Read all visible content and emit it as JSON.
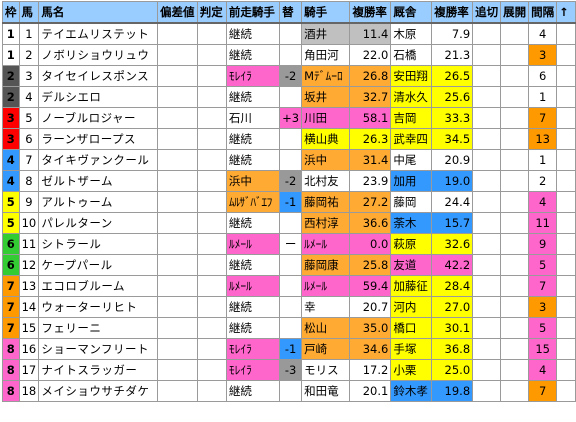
{
  "headers": {
    "waku": "枠",
    "umaban": "馬",
    "horse": "馬名",
    "hensa": "偏差値",
    "hantei": "判定",
    "prev_jockey": "前走騎手",
    "change": "替",
    "jockey": "騎手",
    "rate1": "複勝率",
    "trainer": "厩舎",
    "rate2": "複勝率",
    "oikiri": "追切",
    "tenkai": "展開",
    "kankaku": "間隔",
    "arrow": "↑"
  },
  "colors": {
    "header_bg": "#99ccff",
    "orange": "#ffaa33",
    "yellow": "#ffff00",
    "blue": "#3399ff",
    "pink": "#ff66cc",
    "gray": "#c0c0c0",
    "green": "#66dd44"
  },
  "rows": [
    {
      "waku": "1",
      "umaban": "1",
      "horse": "テイエムリステット",
      "prev": "継続",
      "change": "",
      "jockey": "酒井",
      "rate1": "11.4",
      "trainer": "木原",
      "rate2": "7.9",
      "kankaku": "4"
    },
    {
      "waku": "1",
      "umaban": "2",
      "horse": "ノボリショウリュウ",
      "prev": "継続",
      "change": "",
      "jockey": "角田河",
      "rate1": "22.0",
      "trainer": "石橋",
      "rate2": "21.3",
      "kankaku": "3"
    },
    {
      "waku": "2",
      "umaban": "3",
      "horse": "タイセイレスポンス",
      "prev": "ﾓﾚｲﾗ",
      "change": "-2",
      "jockey": "Mﾃﾞﾑｰﾛ",
      "rate1": "26.8",
      "trainer": "安田翔",
      "rate2": "26.5",
      "kankaku": "6"
    },
    {
      "waku": "2",
      "umaban": "4",
      "horse": "デルシエロ",
      "prev": "継続",
      "change": "",
      "jockey": "坂井",
      "rate1": "32.7",
      "trainer": "清水久",
      "rate2": "25.6",
      "kankaku": "1"
    },
    {
      "waku": "3",
      "umaban": "5",
      "horse": "ノーブルロジャー",
      "prev": "石川",
      "change": "+3",
      "jockey": "川田",
      "rate1": "58.1",
      "trainer": "吉岡",
      "rate2": "33.3",
      "kankaku": "7"
    },
    {
      "waku": "3",
      "umaban": "6",
      "horse": "ラーンザロープス",
      "prev": "継続",
      "change": "",
      "jockey": "横山典",
      "rate1": "26.3",
      "trainer": "武幸四",
      "rate2": "34.5",
      "kankaku": "13"
    },
    {
      "waku": "4",
      "umaban": "7",
      "horse": "タイキヴァンクール",
      "prev": "継続",
      "change": "",
      "jockey": "浜中",
      "rate1": "31.4",
      "trainer": "中尾",
      "rate2": "20.9",
      "kankaku": "1"
    },
    {
      "waku": "4",
      "umaban": "8",
      "horse": "ゼルトザーム",
      "prev": "浜中",
      "change": "-2",
      "jockey": "北村友",
      "rate1": "23.9",
      "trainer": "加用",
      "rate2": "19.0",
      "kankaku": "2"
    },
    {
      "waku": "5",
      "umaban": "9",
      "horse": "アルトゥーム",
      "prev": "ﾑﾙｻﾞﾊﾞｴﾌ",
      "change": "-1",
      "jockey": "藤岡祐",
      "rate1": "27.2",
      "trainer": "藤岡",
      "rate2": "24.4",
      "kankaku": "4"
    },
    {
      "waku": "5",
      "umaban": "10",
      "horse": "パレルターン",
      "prev": "継続",
      "change": "",
      "jockey": "西村淳",
      "rate1": "36.6",
      "trainer": "荼木",
      "rate2": "15.7",
      "kankaku": "11"
    },
    {
      "waku": "6",
      "umaban": "11",
      "horse": "シトラール",
      "prev": "ﾙﾒｰﾙ",
      "change": "ー",
      "jockey": "ﾙﾒｰﾙ",
      "rate1": "0.0",
      "trainer": "萩原",
      "rate2": "32.6",
      "kankaku": "9"
    },
    {
      "waku": "6",
      "umaban": "12",
      "horse": "ケープパール",
      "prev": "継続",
      "change": "",
      "jockey": "藤岡康",
      "rate1": "25.8",
      "trainer": "友道",
      "rate2": "42.2",
      "kankaku": "5"
    },
    {
      "waku": "7",
      "umaban": "13",
      "horse": "エコロブルーム",
      "prev": "ﾙﾒｰﾙ",
      "change": "",
      "jockey": "ﾙﾒｰﾙ",
      "rate1": "59.4",
      "trainer": "加藤征",
      "rate2": "28.4",
      "kankaku": "7"
    },
    {
      "waku": "7",
      "umaban": "14",
      "horse": "ウォーターリヒト",
      "prev": "継続",
      "change": "",
      "jockey": "幸",
      "rate1": "20.7",
      "trainer": "河内",
      "rate2": "27.0",
      "kankaku": "3"
    },
    {
      "waku": "7",
      "umaban": "15",
      "horse": "フェリーニ",
      "prev": "継続",
      "change": "",
      "jockey": "松山",
      "rate1": "35.0",
      "trainer": "橋口",
      "rate2": "30.1",
      "kankaku": "5"
    },
    {
      "waku": "8",
      "umaban": "16",
      "horse": "ショーマンフリート",
      "prev": "ﾓﾚｲﾗ",
      "change": "-1",
      "jockey": "戸崎",
      "rate1": "34.6",
      "trainer": "手塚",
      "rate2": "36.8",
      "kankaku": "15"
    },
    {
      "waku": "8",
      "umaban": "17",
      "horse": "ナイトスラッガー",
      "prev": "ﾓﾚｲﾗ",
      "change": "-3",
      "jockey": "モリス",
      "rate1": "17.2",
      "trainer": "小栗",
      "rate2": "25.0",
      "kankaku": "4"
    },
    {
      "waku": "8",
      "umaban": "18",
      "horse": "メイショウサチダケ",
      "prev": "継続",
      "change": "",
      "jockey": "和田竜",
      "rate1": "20.1",
      "trainer": "鈴木孝",
      "rate2": "19.8",
      "kankaku": "7"
    }
  ]
}
